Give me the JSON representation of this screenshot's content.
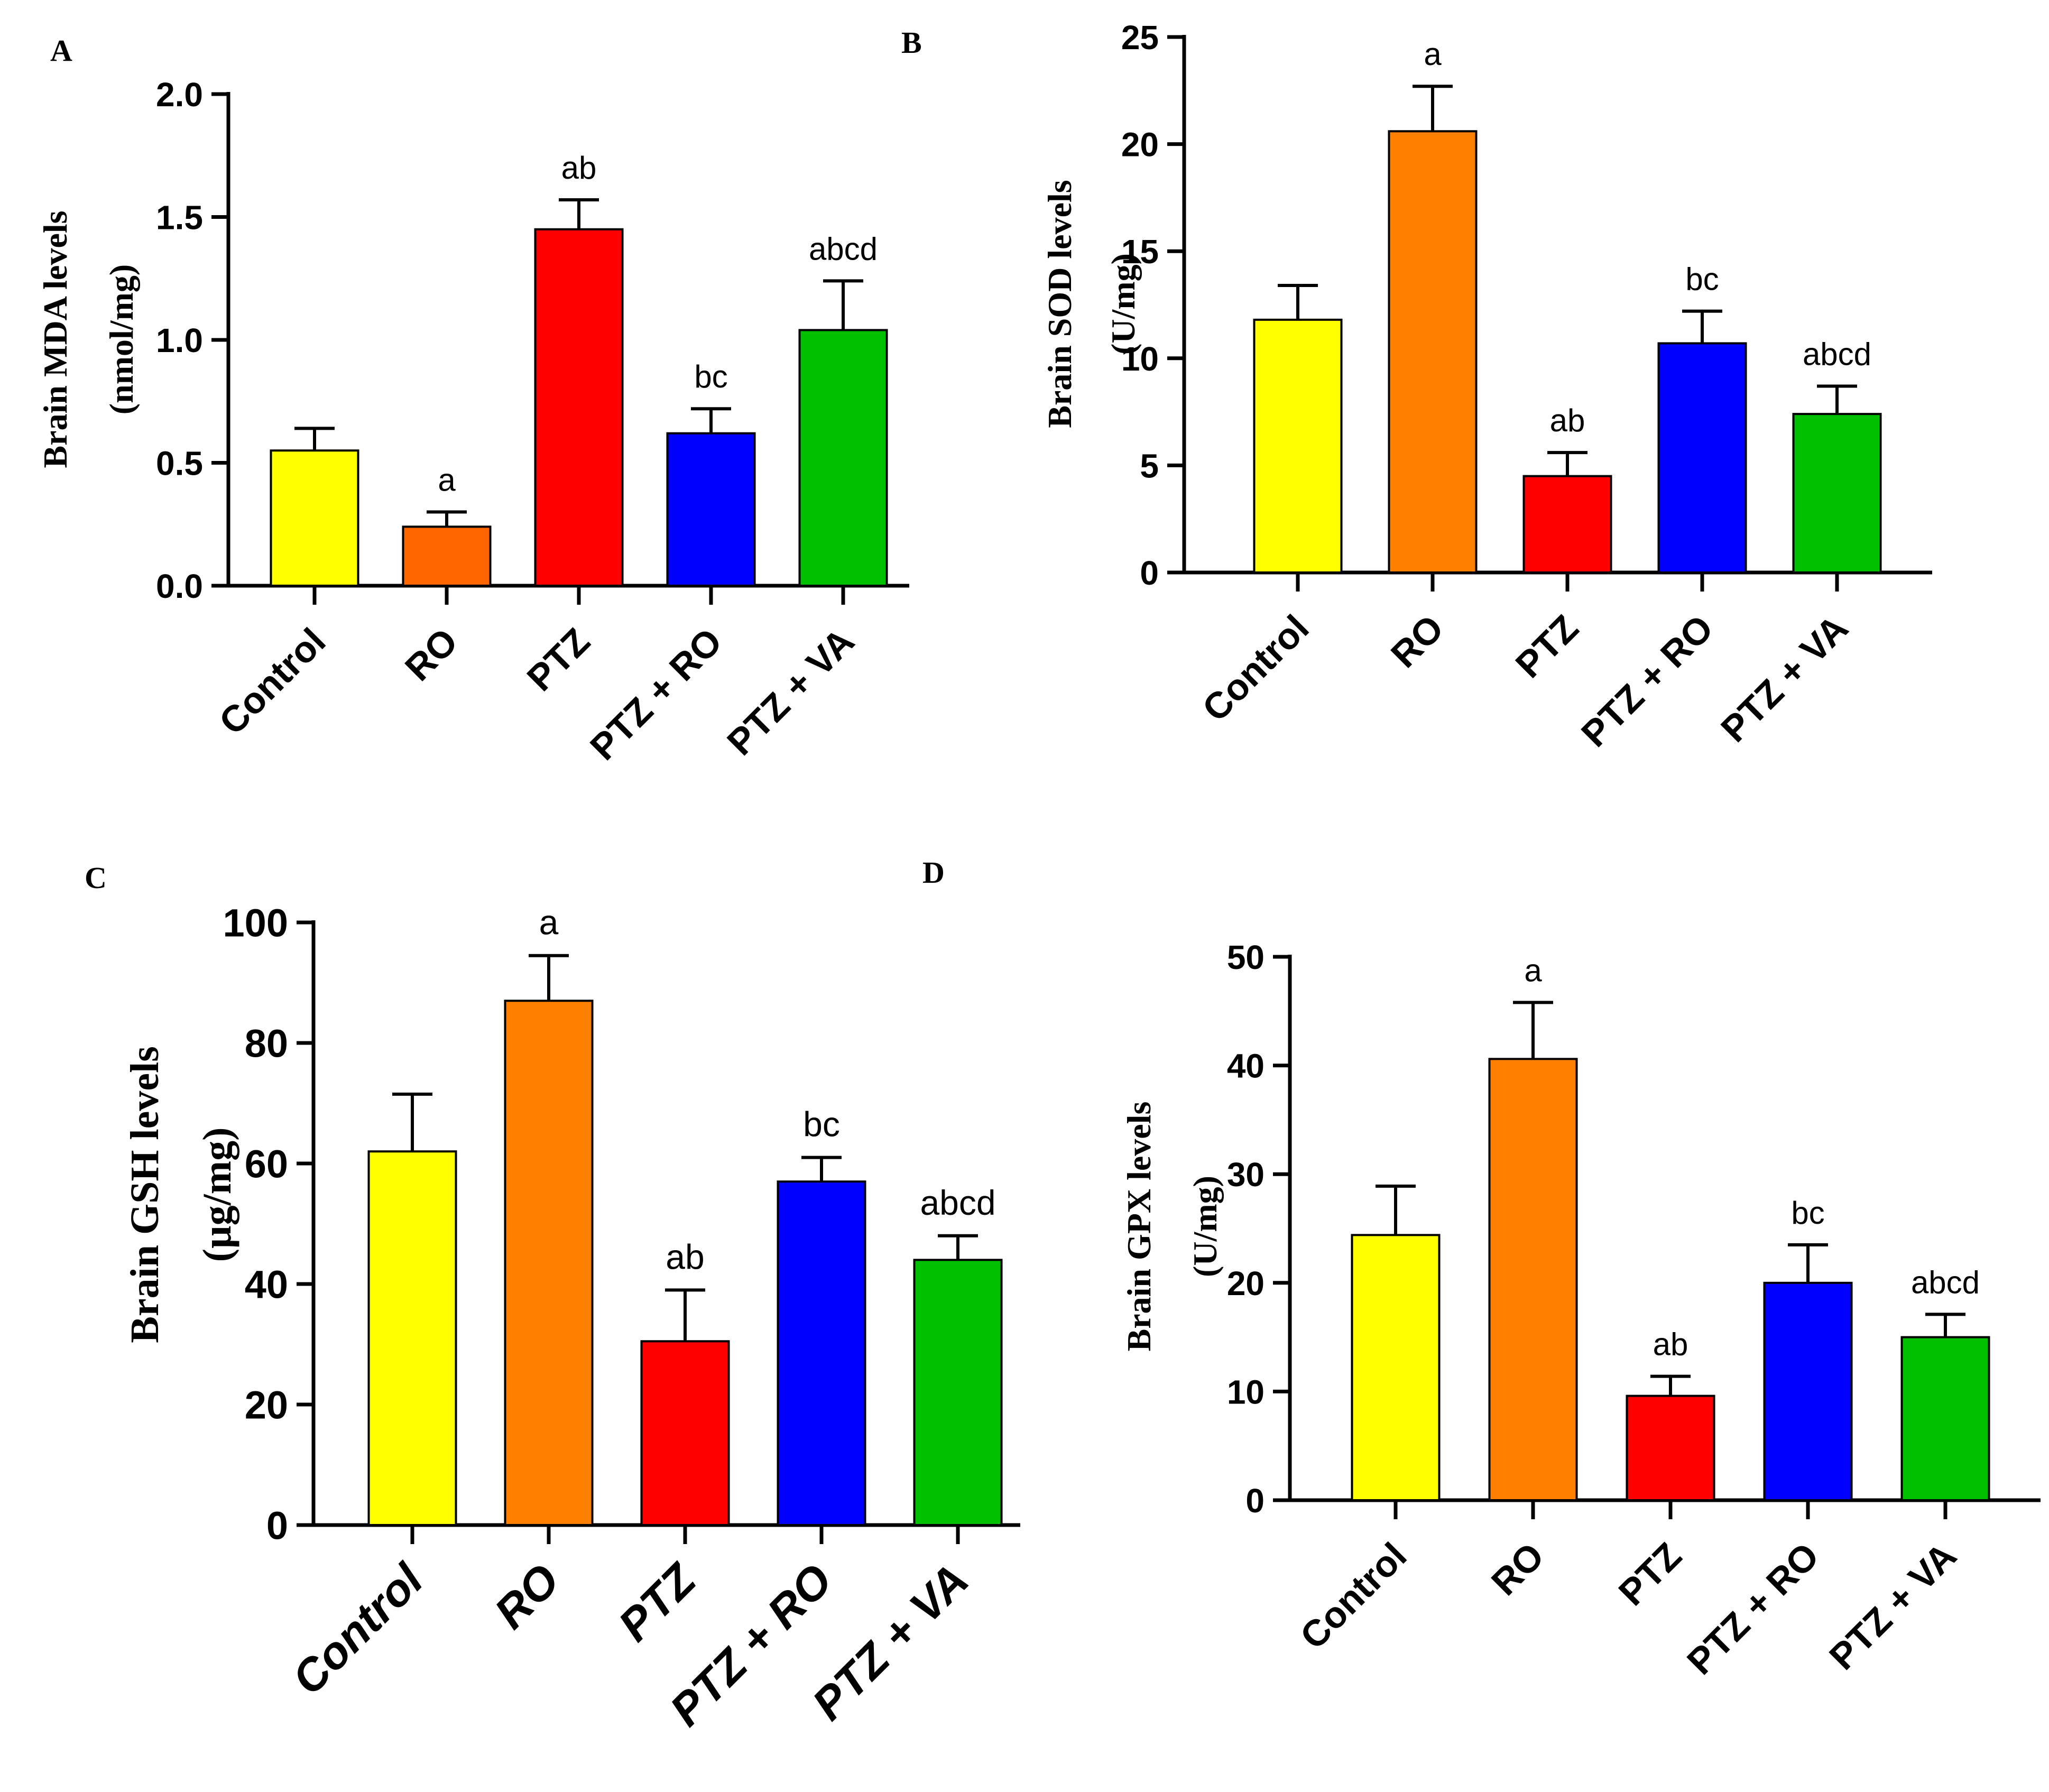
{
  "chart_data": [
    {
      "panel": "A",
      "type": "bar",
      "categories": [
        "Control",
        "RO",
        "PTZ",
        "PTZ + RO",
        "PTZ + VA"
      ],
      "values": [
        0.55,
        0.24,
        1.45,
        0.62,
        1.04
      ],
      "errors": [
        0.09,
        0.06,
        0.12,
        0.1,
        0.2
      ],
      "significance": [
        "",
        "a",
        "ab",
        "bc",
        "abcd"
      ],
      "colors": [
        "#ffff00",
        "#ff6600",
        "#ff0000",
        "#0000ff",
        "#00c000"
      ],
      "ylabel_line1": "Brain MDA levels",
      "ylabel_line2": "(nmol/mg)",
      "ylim": [
        0,
        2.0
      ],
      "yticks": [
        "0.0",
        "0.5",
        "1.0",
        "1.5",
        "2.0"
      ],
      "grid": false
    },
    {
      "panel": "B",
      "type": "bar",
      "categories": [
        "Control",
        "RO",
        "PTZ",
        "PTZ + RO",
        "PTZ + VA"
      ],
      "values": [
        11.8,
        20.6,
        4.5,
        10.7,
        7.4
      ],
      "errors": [
        1.6,
        2.1,
        1.1,
        1.5,
        1.3
      ],
      "significance": [
        "",
        "a",
        "ab",
        "bc",
        "abcd"
      ],
      "colors": [
        "#ffff00",
        "#ff8000",
        "#ff0000",
        "#0000ff",
        "#00c000"
      ],
      "ylabel_line1": "Brain SOD levels",
      "ylabel_line2": "(U/mg)",
      "ylim": [
        0,
        25
      ],
      "yticks": [
        "0",
        "5",
        "10",
        "15",
        "20",
        "25"
      ],
      "grid": false
    },
    {
      "panel": "C",
      "type": "bar",
      "categories": [
        "Control",
        "RO",
        "PTZ",
        "PTZ + RO",
        "PTZ + VA"
      ],
      "values": [
        62,
        87,
        30.5,
        57,
        44
      ],
      "errors": [
        9.5,
        7.5,
        8.5,
        4,
        4
      ],
      "significance": [
        "",
        "a",
        "ab",
        "bc",
        "abcd"
      ],
      "colors": [
        "#ffff00",
        "#ff8000",
        "#ff0000",
        "#0000ff",
        "#00c000"
      ],
      "ylabel_line1": "Brain GSH levels",
      "ylabel_line2": "(µg/mg)",
      "ylim": [
        0,
        100
      ],
      "yticks": [
        "0",
        "20",
        "40",
        "60",
        "80",
        "100"
      ],
      "grid": false
    },
    {
      "panel": "D",
      "type": "bar",
      "categories": [
        "Control",
        "RO",
        "PTZ",
        "PTZ + RO",
        "PTZ + VA"
      ],
      "values": [
        24.4,
        40.6,
        9.6,
        20.0,
        15.0
      ],
      "errors": [
        4.5,
        5.2,
        1.8,
        3.5,
        2.1
      ],
      "significance": [
        "",
        "a",
        "ab",
        "bc",
        "abcd"
      ],
      "colors": [
        "#ffff00",
        "#ff8000",
        "#ff0000",
        "#0000ff",
        "#00c000"
      ],
      "ylabel_line1": "Brain GPX levels",
      "ylabel_line2": "(U/mg)",
      "ylim": [
        0,
        50
      ],
      "yticks": [
        "0",
        "10",
        "20",
        "30",
        "40",
        "50"
      ],
      "grid": false
    }
  ]
}
